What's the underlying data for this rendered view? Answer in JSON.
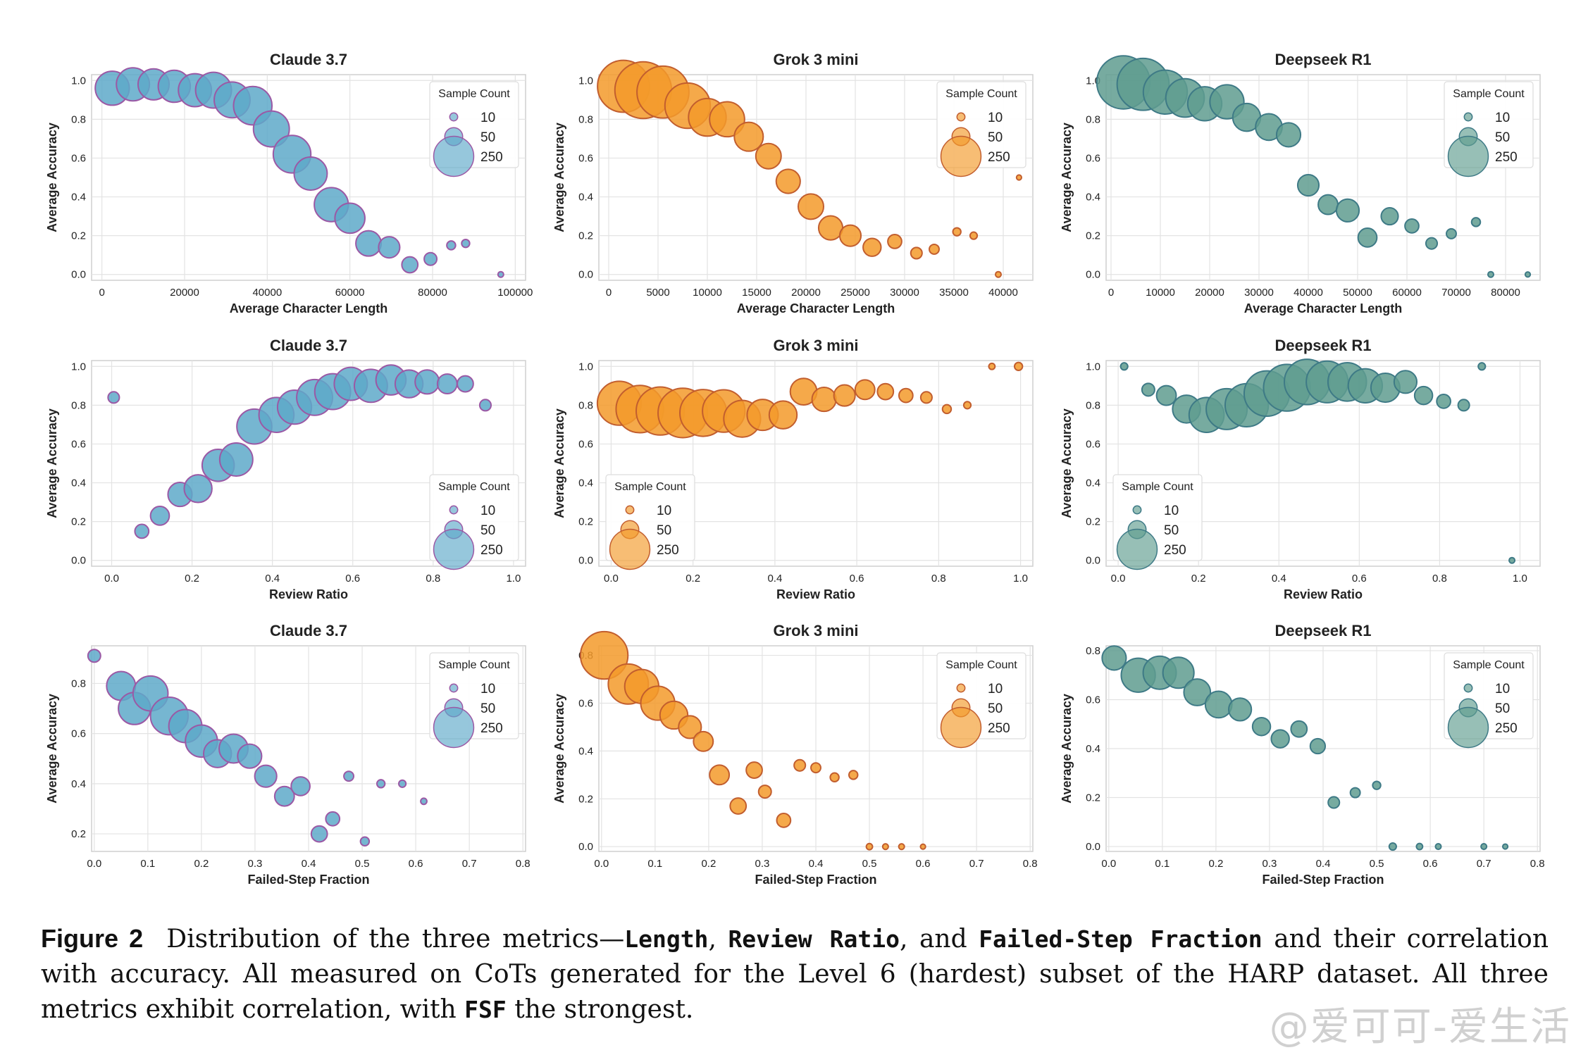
{
  "legend": {
    "title": "Sample Count",
    "entries": [
      10,
      50,
      250
    ]
  },
  "palette": {
    "Claude 3.7": {
      "fill": "#5ea9c9",
      "stroke": "#9b59a5"
    },
    "Grok 3 mini": {
      "fill": "#f39a2a",
      "stroke": "#c25e2e"
    },
    "Deepseek R1": {
      "fill": "#5f9c8f",
      "stroke": "#3e7a86"
    }
  },
  "chart_data": [
    {
      "type": "scatter",
      "title": "Claude 3.7",
      "xlabel": "Average Character Length",
      "ylabel": "Average Accuracy",
      "xlim": [
        -2500,
        102500
      ],
      "ylim": [
        -0.03,
        1.03
      ],
      "xticks": [
        0,
        20000,
        40000,
        60000,
        80000,
        100000
      ],
      "yticks": [
        0.0,
        0.2,
        0.4,
        0.6,
        0.8,
        1.0
      ],
      "legend_position": "top-right",
      "points": [
        [
          2500,
          0.96,
          180
        ],
        [
          7500,
          0.98,
          170
        ],
        [
          12500,
          0.98,
          150
        ],
        [
          17500,
          0.97,
          160
        ],
        [
          22500,
          0.95,
          170
        ],
        [
          27000,
          0.95,
          200
        ],
        [
          31500,
          0.9,
          200
        ],
        [
          36500,
          0.87,
          230
        ],
        [
          41000,
          0.75,
          200
        ],
        [
          46000,
          0.62,
          220
        ],
        [
          50500,
          0.52,
          170
        ],
        [
          55500,
          0.36,
          180
        ],
        [
          60000,
          0.29,
          140
        ],
        [
          64500,
          0.16,
          100
        ],
        [
          69500,
          0.14,
          70
        ],
        [
          74500,
          0.05,
          40
        ],
        [
          79500,
          0.08,
          25
        ],
        [
          84500,
          0.15,
          12
        ],
        [
          88000,
          0.16,
          10
        ],
        [
          96500,
          0.0,
          5
        ]
      ]
    },
    {
      "type": "scatter",
      "title": "Grok 3 mini",
      "xlabel": "Average Character Length",
      "ylabel": "Average Accuracy",
      "xlim": [
        -1000,
        43000
      ],
      "ylim": [
        -0.03,
        1.03
      ],
      "xticks": [
        0,
        5000,
        10000,
        15000,
        20000,
        25000,
        30000,
        35000,
        40000
      ],
      "yticks": [
        0.0,
        0.2,
        0.4,
        0.6,
        0.8,
        1.0
      ],
      "legend_position": "top-right",
      "points": [
        [
          1500,
          0.97,
          420
        ],
        [
          3500,
          0.95,
          500
        ],
        [
          5500,
          0.94,
          420
        ],
        [
          8000,
          0.87,
          320
        ],
        [
          10000,
          0.81,
          220
        ],
        [
          12000,
          0.8,
          190
        ],
        [
          14200,
          0.71,
          130
        ],
        [
          16200,
          0.61,
          100
        ],
        [
          18200,
          0.48,
          90
        ],
        [
          20500,
          0.35,
          100
        ],
        [
          22500,
          0.24,
          90
        ],
        [
          24500,
          0.2,
          70
        ],
        [
          26700,
          0.14,
          50
        ],
        [
          29000,
          0.17,
          30
        ],
        [
          31200,
          0.11,
          20
        ],
        [
          33000,
          0.13,
          15
        ],
        [
          35300,
          0.22,
          10
        ],
        [
          37000,
          0.2,
          8
        ],
        [
          39500,
          0.0,
          5
        ],
        [
          41600,
          0.5,
          4
        ]
      ]
    },
    {
      "type": "scatter",
      "title": "Deepseek R1",
      "xlabel": "Average Character Length",
      "ylabel": "Average Accuracy",
      "xlim": [
        -1000,
        87000
      ],
      "ylim": [
        -0.03,
        1.03
      ],
      "xticks": [
        0,
        10000,
        20000,
        30000,
        40000,
        50000,
        60000,
        70000,
        80000
      ],
      "yticks": [
        0.0,
        0.2,
        0.4,
        0.6,
        0.8,
        1.0
      ],
      "legend_position": "top-right",
      "points": [
        [
          2500,
          0.99,
          440
        ],
        [
          6500,
          0.98,
          420
        ],
        [
          11000,
          0.94,
          300
        ],
        [
          15000,
          0.91,
          230
        ],
        [
          19000,
          0.88,
          180
        ],
        [
          23500,
          0.89,
          180
        ],
        [
          27500,
          0.81,
          120
        ],
        [
          32000,
          0.76,
          110
        ],
        [
          36000,
          0.72,
          90
        ],
        [
          40000,
          0.46,
          70
        ],
        [
          44000,
          0.36,
          60
        ],
        [
          48000,
          0.33,
          80
        ],
        [
          52000,
          0.19,
          55
        ],
        [
          56500,
          0.3,
          45
        ],
        [
          61000,
          0.25,
          30
        ],
        [
          65000,
          0.16,
          20
        ],
        [
          69000,
          0.21,
          15
        ],
        [
          74000,
          0.27,
          12
        ],
        [
          77000,
          0.0,
          5
        ],
        [
          84500,
          0.0,
          4
        ]
      ]
    },
    {
      "type": "scatter",
      "title": "Claude 3.7",
      "xlabel": "Review Ratio",
      "ylabel": "Average Accuracy",
      "xlim": [
        -0.05,
        1.03
      ],
      "ylim": [
        -0.03,
        1.03
      ],
      "xticks": [
        0.0,
        0.2,
        0.4,
        0.6,
        0.8,
        1.0
      ],
      "yticks": [
        0.0,
        0.2,
        0.4,
        0.6,
        0.8,
        1.0
      ],
      "legend_position": "bottom-right",
      "points": [
        [
          0.005,
          0.84,
          20
        ],
        [
          0.075,
          0.15,
          30
        ],
        [
          0.12,
          0.23,
          55
        ],
        [
          0.17,
          0.34,
          90
        ],
        [
          0.215,
          0.37,
          120
        ],
        [
          0.265,
          0.49,
          160
        ],
        [
          0.31,
          0.52,
          170
        ],
        [
          0.355,
          0.69,
          190
        ],
        [
          0.41,
          0.75,
          190
        ],
        [
          0.455,
          0.79,
          180
        ],
        [
          0.505,
          0.84,
          200
        ],
        [
          0.55,
          0.87,
          200
        ],
        [
          0.595,
          0.91,
          170
        ],
        [
          0.645,
          0.9,
          170
        ],
        [
          0.695,
          0.93,
          140
        ],
        [
          0.74,
          0.91,
          120
        ],
        [
          0.785,
          0.92,
          90
        ],
        [
          0.835,
          0.91,
          60
        ],
        [
          0.88,
          0.91,
          40
        ],
        [
          0.93,
          0.8,
          20
        ]
      ]
    },
    {
      "type": "scatter",
      "title": "Grok 3 mini",
      "xlabel": "Review Ratio",
      "ylabel": "Average Accuracy",
      "xlim": [
        -0.03,
        1.03
      ],
      "ylim": [
        -0.03,
        1.03
      ],
      "xticks": [
        0.0,
        0.2,
        0.4,
        0.6,
        0.8,
        1.0
      ],
      "yticks": [
        0.0,
        0.2,
        0.4,
        0.6,
        0.8,
        1.0
      ],
      "legend_position": "bottom-left",
      "points": [
        [
          0.02,
          0.81,
          300
        ],
        [
          0.07,
          0.78,
          350
        ],
        [
          0.12,
          0.77,
          360
        ],
        [
          0.175,
          0.76,
          380
        ],
        [
          0.225,
          0.76,
          340
        ],
        [
          0.275,
          0.77,
          280
        ],
        [
          0.32,
          0.73,
          210
        ],
        [
          0.37,
          0.75,
          150
        ],
        [
          0.42,
          0.75,
          120
        ],
        [
          0.47,
          0.87,
          110
        ],
        [
          0.52,
          0.83,
          90
        ],
        [
          0.57,
          0.85,
          70
        ],
        [
          0.62,
          0.88,
          60
        ],
        [
          0.67,
          0.87,
          40
        ],
        [
          0.72,
          0.85,
          30
        ],
        [
          0.77,
          0.84,
          20
        ],
        [
          0.82,
          0.78,
          12
        ],
        [
          0.87,
          0.8,
          8
        ],
        [
          0.93,
          1.0,
          6
        ],
        [
          0.995,
          1.0,
          10
        ]
      ]
    },
    {
      "type": "scatter",
      "title": "Deepseek R1",
      "xlabel": "Review Ratio",
      "ylabel": "Average Accuracy",
      "xlim": [
        -0.03,
        1.05
      ],
      "ylim": [
        -0.03,
        1.03
      ],
      "xticks": [
        0.0,
        0.2,
        0.4,
        0.6,
        0.8,
        1.0
      ],
      "yticks": [
        0.0,
        0.2,
        0.4,
        0.6,
        0.8,
        1.0
      ],
      "legend_position": "bottom-left",
      "points": [
        [
          0.015,
          1.0,
          8
        ],
        [
          0.075,
          0.88,
          25
        ],
        [
          0.12,
          0.85,
          60
        ],
        [
          0.17,
          0.78,
          120
        ],
        [
          0.22,
          0.75,
          190
        ],
        [
          0.27,
          0.78,
          260
        ],
        [
          0.32,
          0.8,
          290
        ],
        [
          0.37,
          0.86,
          320
        ],
        [
          0.42,
          0.89,
          340
        ],
        [
          0.47,
          0.92,
          320
        ],
        [
          0.52,
          0.92,
          270
        ],
        [
          0.57,
          0.92,
          230
        ],
        [
          0.615,
          0.9,
          180
        ],
        [
          0.665,
          0.89,
          130
        ],
        [
          0.715,
          0.92,
          80
        ],
        [
          0.76,
          0.85,
          50
        ],
        [
          0.81,
          0.82,
          30
        ],
        [
          0.86,
          0.8,
          20
        ],
        [
          0.905,
          1.0,
          8
        ],
        [
          0.98,
          0.0,
          5
        ]
      ]
    },
    {
      "type": "scatter",
      "title": "Claude 3.7",
      "xlabel": "Failed-Step Fraction",
      "ylabel": "Average Accuracy",
      "xlim": [
        -0.005,
        0.805
      ],
      "ylim": [
        0.13,
        0.95
      ],
      "xticks": [
        0.0,
        0.1,
        0.2,
        0.3,
        0.4,
        0.5,
        0.6,
        0.7,
        0.8
      ],
      "yticks": [
        0.2,
        0.4,
        0.6,
        0.8
      ],
      "legend_position": "top-right",
      "points": [
        [
          0.0,
          0.91,
          25
        ],
        [
          0.05,
          0.79,
          130
        ],
        [
          0.075,
          0.7,
          160
        ],
        [
          0.105,
          0.76,
          190
        ],
        [
          0.14,
          0.67,
          220
        ],
        [
          0.17,
          0.63,
          170
        ],
        [
          0.2,
          0.57,
          160
        ],
        [
          0.23,
          0.52,
          120
        ],
        [
          0.26,
          0.54,
          130
        ],
        [
          0.29,
          0.51,
          90
        ],
        [
          0.32,
          0.43,
          75
        ],
        [
          0.355,
          0.35,
          60
        ],
        [
          0.385,
          0.39,
          55
        ],
        [
          0.42,
          0.2,
          40
        ],
        [
          0.445,
          0.26,
          30
        ],
        [
          0.475,
          0.43,
          15
        ],
        [
          0.505,
          0.17,
          12
        ],
        [
          0.535,
          0.4,
          10
        ],
        [
          0.575,
          0.4,
          8
        ],
        [
          0.615,
          0.33,
          6
        ]
      ]
    },
    {
      "type": "scatter",
      "title": "Grok 3 mini",
      "xlabel": "Failed-Step Fraction",
      "ylabel": "Average Accuracy",
      "xlim": [
        -0.005,
        0.805
      ],
      "ylim": [
        -0.02,
        0.84
      ],
      "xticks": [
        0.0,
        0.1,
        0.2,
        0.3,
        0.4,
        0.5,
        0.6,
        0.7,
        0.8
      ],
      "yticks": [
        0.0,
        0.2,
        0.4,
        0.6,
        0.8
      ],
      "legend_position": "top-right",
      "points": [
        [
          0.005,
          0.8,
          350
        ],
        [
          0.05,
          0.68,
          250
        ],
        [
          0.075,
          0.67,
          180
        ],
        [
          0.105,
          0.6,
          180
        ],
        [
          0.135,
          0.55,
          120
        ],
        [
          0.165,
          0.5,
          80
        ],
        [
          0.19,
          0.44,
          60
        ],
        [
          0.22,
          0.3,
          60
        ],
        [
          0.255,
          0.17,
          40
        ],
        [
          0.285,
          0.32,
          40
        ],
        [
          0.305,
          0.23,
          25
        ],
        [
          0.34,
          0.11,
          30
        ],
        [
          0.37,
          0.34,
          20
        ],
        [
          0.4,
          0.33,
          15
        ],
        [
          0.435,
          0.29,
          12
        ],
        [
          0.47,
          0.3,
          12
        ],
        [
          0.5,
          0.0,
          6
        ],
        [
          0.53,
          0.0,
          5
        ],
        [
          0.56,
          0.0,
          5
        ],
        [
          0.6,
          0.0,
          4
        ]
      ]
    },
    {
      "type": "scatter",
      "title": "Deepseek R1",
      "xlabel": "Failed-Step Fraction",
      "ylabel": "Average Accuracy",
      "xlim": [
        -0.005,
        0.805
      ],
      "ylim": [
        -0.02,
        0.82
      ],
      "xticks": [
        0.0,
        0.1,
        0.2,
        0.3,
        0.4,
        0.5,
        0.6,
        0.7,
        0.8
      ],
      "yticks": [
        0.0,
        0.2,
        0.4,
        0.6,
        0.8
      ],
      "legend_position": "top-right",
      "points": [
        [
          0.01,
          0.77,
          90
        ],
        [
          0.055,
          0.7,
          180
        ],
        [
          0.095,
          0.71,
          170
        ],
        [
          0.13,
          0.71,
          150
        ],
        [
          0.165,
          0.63,
          110
        ],
        [
          0.205,
          0.58,
          110
        ],
        [
          0.245,
          0.56,
          80
        ],
        [
          0.285,
          0.49,
          50
        ],
        [
          0.32,
          0.44,
          50
        ],
        [
          0.355,
          0.48,
          40
        ],
        [
          0.39,
          0.41,
          35
        ],
        [
          0.42,
          0.18,
          20
        ],
        [
          0.46,
          0.22,
          15
        ],
        [
          0.5,
          0.25,
          10
        ],
        [
          0.53,
          0.0,
          8
        ],
        [
          0.58,
          0.0,
          6
        ],
        [
          0.615,
          0.0,
          5
        ],
        [
          0.7,
          0.0,
          5
        ],
        [
          0.74,
          0.0,
          4
        ]
      ]
    }
  ],
  "caption": {
    "label": "Figure 2",
    "t1": "Distribution of the three metrics—",
    "m1": "Length",
    "t2": ", ",
    "m2": "Review Ratio",
    "t3": ", and ",
    "m3": "Failed-Step Fraction",
    "t4": " and their correlation with accuracy. All measured on CoTs generated for the Level 6 (hardest) subset of the HARP dataset. All three metrics exhibit correlation, with ",
    "m4": "FSF",
    "t5": " the strongest."
  },
  "watermark": "@爱可可-爱生活"
}
